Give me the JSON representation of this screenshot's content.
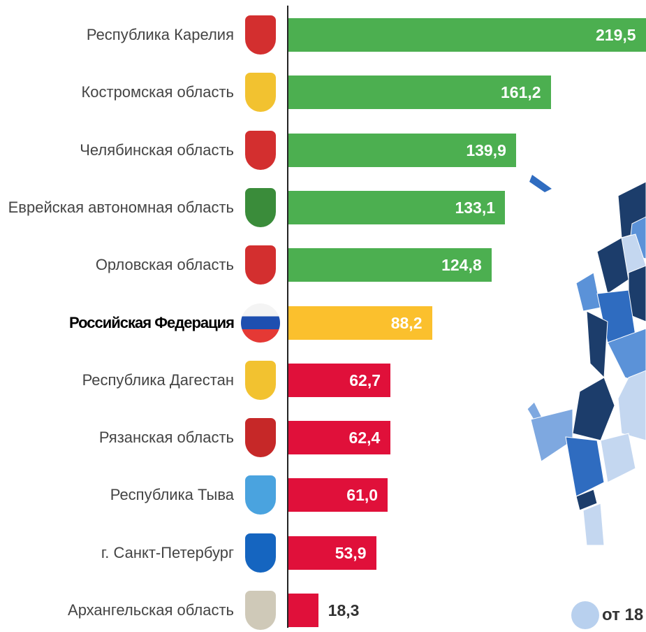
{
  "chart_data": {
    "type": "bar",
    "orientation": "horizontal",
    "categories": [
      "Республика Карелия",
      "Костромская область",
      "Челябинская область",
      "Еврейская автономная область",
      "Орловская область",
      "Российская Федерация",
      "Республика Дагестан",
      "Рязанская область",
      "Республика Тыва",
      "г. Санкт-Петербург",
      "Архангельская область"
    ],
    "values": [
      219.5,
      161.2,
      139.9,
      133.1,
      124.8,
      88.2,
      62.7,
      62.4,
      61.0,
      53.9,
      18.3
    ],
    "value_labels": [
      "219,5",
      "161,2",
      "139,9",
      "133,1",
      "124,8",
      "88,2",
      "62,7",
      "62,4",
      "61,0",
      "53,9",
      "18,3"
    ],
    "colors": [
      "#4caf50",
      "#4caf50",
      "#4caf50",
      "#4caf50",
      "#4caf50",
      "#fbc02d",
      "#e0103a",
      "#e0103a",
      "#e0103a",
      "#e0103a",
      "#e0103a"
    ],
    "highlight": 5,
    "legend": {
      "label": "от 18",
      "color": "#b8d0ee"
    }
  }
}
